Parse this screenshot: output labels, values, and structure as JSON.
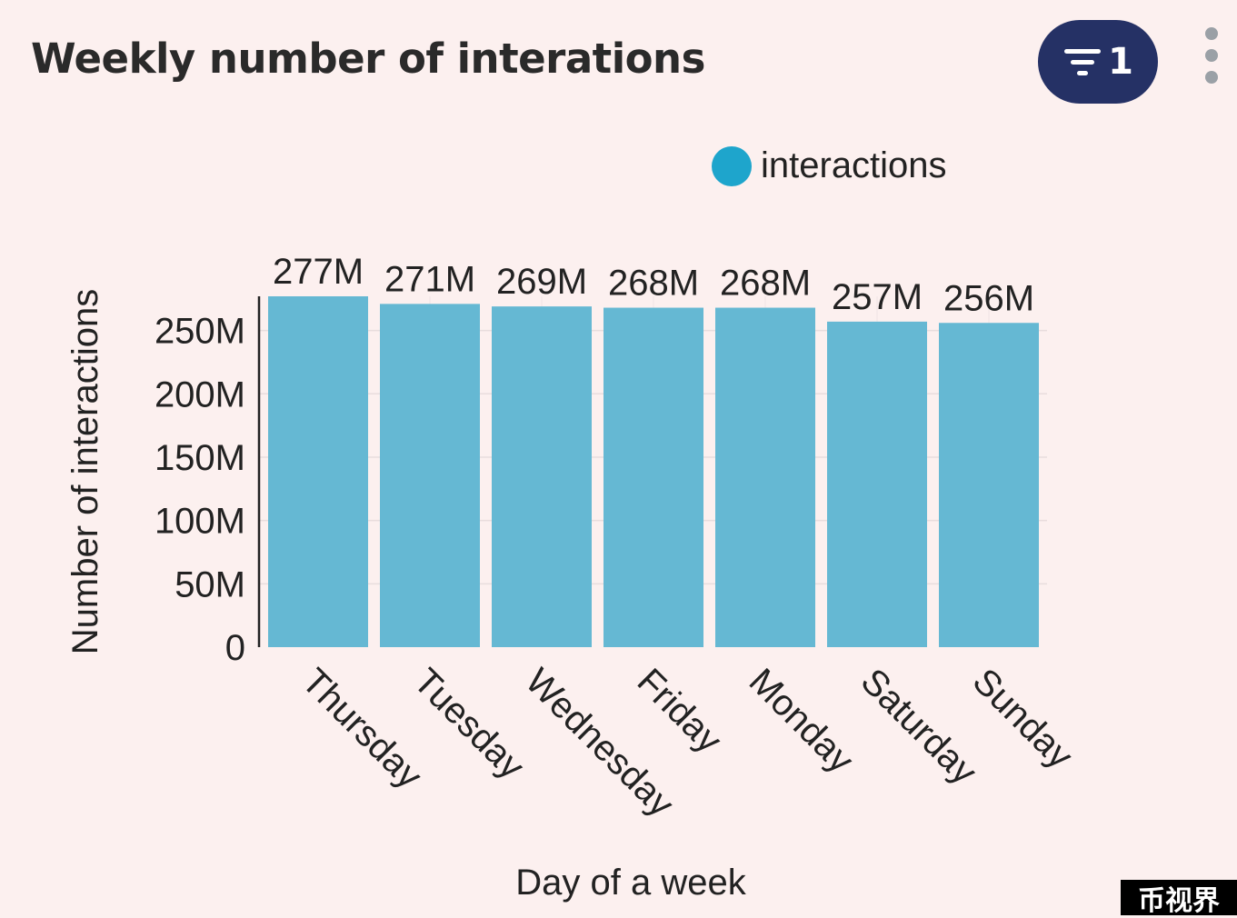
{
  "header": {
    "title": "Weekly number of interations",
    "filter_count": "1"
  },
  "legend": {
    "label": "interactions"
  },
  "chart_data": {
    "type": "bar",
    "xlabel": "Day of a week",
    "ylabel": "Number of interactions",
    "categories": [
      "Thursday",
      "Tuesday",
      "Wednesday",
      "Friday",
      "Monday",
      "Saturday",
      "Sunday"
    ],
    "series": [
      {
        "name": "interactions",
        "values": [
          277000000,
          271000000,
          269000000,
          268000000,
          268000000,
          257000000,
          256000000
        ]
      }
    ],
    "data_labels": [
      "277M",
      "271M",
      "269M",
      "268M",
      "268M",
      "257M",
      "256M"
    ],
    "y_ticks": [
      0,
      50000000,
      100000000,
      150000000,
      200000000,
      250000000
    ],
    "y_tick_labels": [
      "0",
      "50M",
      "100M",
      "150M",
      "200M",
      "250M"
    ],
    "ylim": [
      0,
      277000000
    ],
    "grid": true,
    "legend_position": "top-right",
    "bar_color": "#65b8d3",
    "legend_color": "#1ea5cc"
  },
  "watermark": {
    "text": "币视界"
  }
}
